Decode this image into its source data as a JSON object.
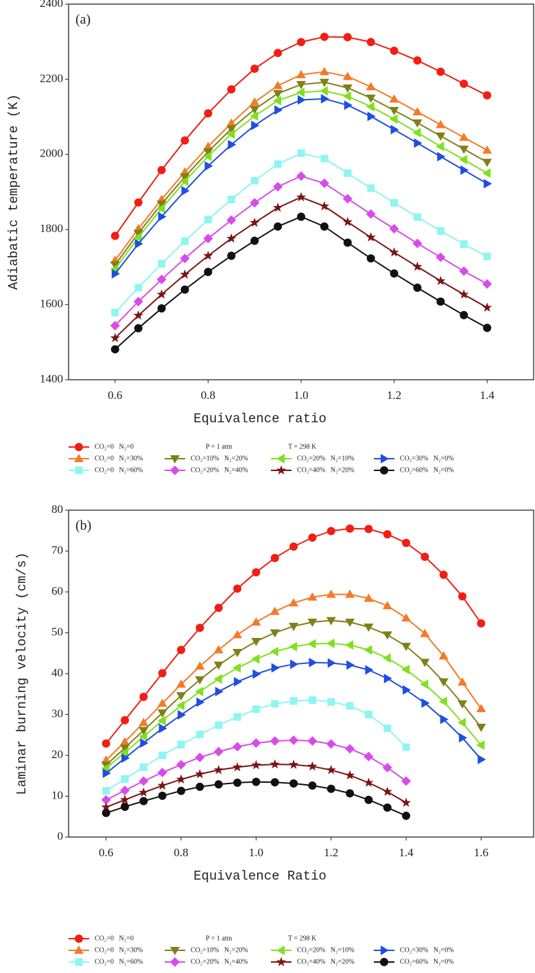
{
  "chart_data": [
    {
      "type": "line",
      "panel_label": "(a)",
      "x_label": "Equivalence ratio",
      "y_label": "Adiabatic temperature (K)",
      "x": [
        0.6,
        0.65,
        0.7,
        0.75,
        0.8,
        0.85,
        0.9,
        0.95,
        1.0,
        1.05,
        1.1,
        1.15,
        1.2,
        1.25,
        1.3,
        1.35,
        1.4
      ],
      "xlim": [
        0.5,
        1.5
      ],
      "xticks": [
        0.6,
        0.8,
        {
          "value": 1,
          "label": "1.0"
        },
        1.2,
        1.4
      ],
      "ylim": [
        1400,
        2400
      ],
      "yticks": [
        1400,
        1600,
        1800,
        2000,
        2200,
        2400
      ],
      "annotations": [
        "P = 1 atm",
        "T = 298 K"
      ],
      "series": [
        {
          "name": "CO₂=0   N₂=0",
          "color": "#f01e14",
          "marker": "circle",
          "values": [
            1783,
            1872,
            1958,
            2037,
            2109,
            2173,
            2228,
            2270,
            2299,
            2313,
            2312,
            2299,
            2276,
            2250,
            2220,
            2188,
            2157
          ]
        },
        {
          "name": "CO₂=0   N₂=30%",
          "color": "#f47a27",
          "marker": "triangle-up",
          "values": [
            1718,
            1802,
            1880,
            1953,
            2021,
            2083,
            2139,
            2183,
            2212,
            2220,
            2207,
            2180,
            2147,
            2113,
            2079,
            2045,
            2011
          ]
        },
        {
          "name": "CO₂=10%   N₂=20%",
          "color": "#808019",
          "marker": "triangle-down",
          "values": [
            1706,
            1790,
            1868,
            1940,
            2007,
            2068,
            2120,
            2162,
            2186,
            2192,
            2177,
            2150,
            2117,
            2084,
            2049,
            2014,
            1979
          ]
        },
        {
          "name": "CO₂=20%   N₂=10%",
          "color": "#80e020",
          "marker": "triangle-left",
          "values": [
            1695,
            1779,
            1856,
            1928,
            1995,
            2054,
            2102,
            2143,
            2165,
            2169,
            2155,
            2127,
            2094,
            2058,
            2021,
            1986,
            1950
          ]
        },
        {
          "name": "CO₂=30%   N₂=0%",
          "color": "#1f4fe0",
          "marker": "triangle-right",
          "values": [
            1682,
            1762,
            1834,
            1903,
            1969,
            2026,
            2077,
            2118,
            2145,
            2148,
            2131,
            2101,
            2066,
            2030,
            1994,
            1958,
            1922
          ]
        },
        {
          "name": "CO₂=0   N₂=60%",
          "color": "#8ff5f0",
          "marker": "square",
          "values": [
            1579,
            1645,
            1709,
            1769,
            1826,
            1880,
            1930,
            1974,
            2003,
            1989,
            1950,
            1910,
            1871,
            1833,
            1796,
            1761,
            1728
          ]
        },
        {
          "name": "CO₂=20%   N₂=40%",
          "color": "#d64ce8",
          "marker": "diamond",
          "values": [
            1544,
            1608,
            1667,
            1723,
            1776,
            1825,
            1871,
            1914,
            1942,
            1923,
            1882,
            1841,
            1802,
            1763,
            1726,
            1689,
            1655
          ]
        },
        {
          "name": "CO₂=40%   N₂=20%",
          "color": "#7a1414",
          "marker": "star",
          "values": [
            1511,
            1571,
            1627,
            1680,
            1730,
            1776,
            1818,
            1858,
            1886,
            1862,
            1820,
            1779,
            1739,
            1701,
            1663,
            1627,
            1592
          ]
        },
        {
          "name": "CO₂=60%   N₂=0%",
          "color": "#111111",
          "marker": "circle",
          "values": [
            1481,
            1537,
            1590,
            1640,
            1687,
            1730,
            1770,
            1808,
            1834,
            1808,
            1765,
            1723,
            1683,
            1645,
            1608,
            1572,
            1538
          ]
        }
      ]
    },
    {
      "type": "line",
      "panel_label": "(b)",
      "x_label": "Equivalence Ratio",
      "y_label": "Laminar burning velocity (cm/s)",
      "x": [
        0.6,
        0.65,
        0.7,
        0.75,
        0.8,
        0.85,
        0.9,
        0.95,
        1.0,
        1.05,
        1.1,
        1.15,
        1.2,
        1.25,
        1.3,
        1.35,
        1.4,
        1.45,
        1.5,
        1.55,
        1.6
      ],
      "xlim": [
        0.5,
        1.74
      ],
      "xticks": [
        0.6,
        0.8,
        {
          "value": 1,
          "label": "1.0"
        },
        1.2,
        1.4,
        1.6
      ],
      "ylim": [
        0,
        80
      ],
      "yticks": [
        0,
        10,
        20,
        30,
        40,
        50,
        60,
        70,
        80
      ],
      "annotations": [
        "P = 1 atm",
        "T = 298 K"
      ],
      "series": [
        {
          "name": "CO₂=0   N₂=0",
          "color": "#f01e14",
          "marker": "circle",
          "values": [
            22.9,
            28.6,
            34.3,
            40.1,
            45.8,
            51.2,
            56.1,
            60.8,
            64.8,
            68.3,
            71.1,
            73.3,
            74.9,
            75.5,
            75.4,
            74.1,
            72.0,
            68.6,
            64.2,
            58.9,
            52.3
          ]
        },
        {
          "name": "CO₂=0   N₂=30%",
          "color": "#f47a27",
          "marker": "triangle-up",
          "values": [
            18.8,
            23.3,
            28.0,
            32.7,
            37.4,
            41.8,
            45.8,
            49.5,
            52.6,
            55.2,
            57.3,
            58.7,
            59.4,
            59.4,
            58.4,
            56.6,
            53.6,
            49.8,
            44.3,
            37.9,
            31.4
          ]
        },
        {
          "name": "CO₂=10%   N₂=20%",
          "color": "#808019",
          "marker": "triangle-down",
          "values": [
            17.6,
            21.8,
            26.1,
            30.4,
            34.6,
            38.5,
            42.1,
            45.2,
            47.9,
            50.0,
            51.6,
            52.6,
            53.0,
            52.6,
            51.4,
            49.5,
            46.7,
            42.8,
            38.0,
            32.6,
            26.9
          ]
        },
        {
          "name": "CO₂=20%   N₂=10%",
          "color": "#80e020",
          "marker": "triangle-left",
          "values": [
            16.8,
            20.7,
            24.6,
            28.5,
            32.2,
            35.6,
            38.7,
            41.4,
            43.6,
            45.4,
            46.6,
            47.3,
            47.4,
            47.0,
            45.8,
            43.8,
            41.0,
            37.4,
            33.2,
            28.0,
            22.5
          ]
        },
        {
          "name": "CO₂=30%   N₂=0%",
          "color": "#1f4fe0",
          "marker": "triangle-right",
          "values": [
            15.6,
            19.3,
            23.0,
            26.6,
            29.9,
            33.0,
            35.6,
            38.0,
            39.9,
            41.4,
            42.3,
            42.7,
            42.6,
            42.1,
            40.9,
            38.8,
            36.0,
            32.8,
            28.8,
            24.3,
            19.0
          ]
        },
        {
          "name": "CO₂=0   N₂=60%",
          "color": "#8ff5f0",
          "marker": "square",
          "values": [
            11.3,
            14.2,
            17.1,
            20.0,
            22.6,
            25.1,
            27.4,
            29.4,
            31.3,
            32.6,
            33.3,
            33.5,
            33.1,
            32.1,
            30.0,
            26.6,
            22.0,
            null,
            null,
            null,
            null
          ]
        },
        {
          "name": "CO₂=20%   N₂=40%",
          "color": "#d64ce8",
          "marker": "diamond",
          "values": [
            9.1,
            11.4,
            13.7,
            15.8,
            17.7,
            19.5,
            20.9,
            22.1,
            23.0,
            23.5,
            23.7,
            23.5,
            22.8,
            21.6,
            19.7,
            17.0,
            13.7,
            null,
            null,
            null,
            null
          ]
        },
        {
          "name": "CO₂=40%   N₂=20%",
          "color": "#7a1414",
          "marker": "star",
          "values": [
            7.3,
            9.1,
            10.9,
            12.6,
            14.1,
            15.4,
            16.4,
            17.1,
            17.6,
            17.8,
            17.7,
            17.3,
            16.4,
            15.1,
            13.3,
            11.1,
            8.4,
            null,
            null,
            null,
            null
          ]
        },
        {
          "name": "CO₂=60%   N₂=0%",
          "color": "#111111",
          "marker": "circle",
          "values": [
            5.9,
            7.4,
            8.8,
            10.1,
            11.3,
            12.3,
            12.9,
            13.3,
            13.5,
            13.4,
            13.1,
            12.6,
            11.8,
            10.7,
            9.1,
            7.2,
            5.2,
            null,
            null,
            null,
            null
          ]
        }
      ]
    }
  ]
}
